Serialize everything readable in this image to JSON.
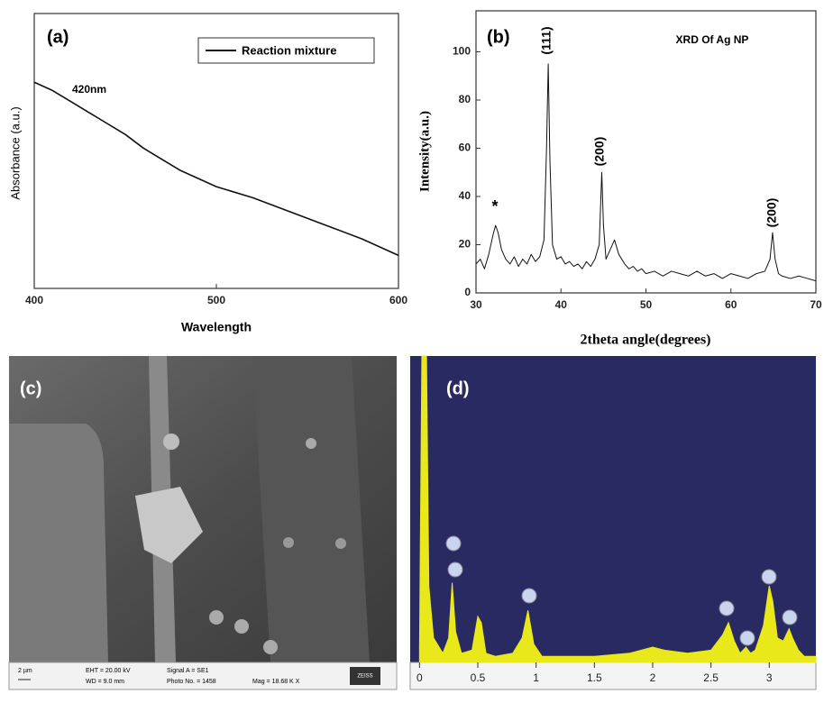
{
  "chart_data": [
    {
      "type": "line",
      "panel_label": "(a)",
      "x_label": "Wavelength",
      "y_label": "Absorbance (a.u.)",
      "annotation": "420nm",
      "xlim": [
        400,
        600
      ],
      "xticks": [
        400,
        500,
        600
      ],
      "ylim": [
        0,
        1
      ],
      "x": [
        400,
        410,
        420,
        430,
        440,
        450,
        460,
        470,
        480,
        490,
        500,
        520,
        540,
        560,
        580,
        600
      ],
      "series": [
        {
          "name": "Reaction mixture",
          "color": "#111111",
          "values": [
            0.75,
            0.72,
            0.68,
            0.64,
            0.6,
            0.56,
            0.51,
            0.47,
            0.43,
            0.4,
            0.37,
            0.33,
            0.28,
            0.23,
            0.18,
            0.12
          ]
        }
      ]
    },
    {
      "type": "line",
      "panel_label": "(b)",
      "title": "XRD Of Ag NP",
      "x_label": "2theta angle(degrees)",
      "y_label": "Intensity(a.u.)",
      "annotations": [
        "(111)",
        "(200)",
        "(200)",
        "*"
      ],
      "xlim": [
        30,
        70
      ],
      "xticks": [
        30,
        40,
        50,
        60,
        70
      ],
      "ylim": [
        0,
        117
      ],
      "yticks": [
        0,
        20,
        40,
        60,
        80,
        100
      ],
      "color": "#111111",
      "x": [
        30,
        30.5,
        31,
        31.5,
        32,
        32.3,
        32.6,
        33,
        33.5,
        34,
        34.5,
        35,
        35.5,
        36,
        36.5,
        37,
        37.5,
        38,
        38.3,
        38.5,
        38.7,
        39,
        39.5,
        40,
        40.5,
        41,
        41.5,
        42,
        42.5,
        43,
        43.5,
        44,
        44.5,
        44.8,
        45,
        45.3,
        45.8,
        46.3,
        46.8,
        47.5,
        48,
        48.5,
        49,
        49.5,
        50,
        51,
        52,
        53,
        54,
        55,
        56,
        57,
        58,
        59,
        60,
        61,
        62,
        63,
        64,
        64.6,
        64.9,
        65.2,
        65.6,
        66,
        67,
        68,
        69,
        70
      ],
      "values": [
        12,
        14,
        10,
        16,
        24,
        28,
        25,
        18,
        14,
        12,
        15,
        11,
        14,
        12,
        16,
        13,
        15,
        22,
        60,
        95,
        55,
        20,
        14,
        15,
        12,
        13,
        11,
        12,
        10,
        13,
        11,
        14,
        20,
        50,
        28,
        14,
        18,
        22,
        16,
        12,
        10,
        11,
        9,
        10,
        8,
        9,
        7,
        9,
        8,
        7,
        9,
        7,
        8,
        6,
        8,
        7,
        6,
        8,
        9,
        14,
        25,
        14,
        8,
        7,
        6,
        7,
        6,
        5
      ]
    },
    {
      "type": "image",
      "panel_label": "(c)",
      "scale_bar": "2 µm",
      "info": [
        "EHT = 20.00 kV",
        "WD = 9.0 mm",
        "Signal A = SE1",
        "Photo No. = 1458",
        "Mag = 18.68 K X"
      ],
      "brand": "ZEISS"
    },
    {
      "type": "area",
      "panel_label": "(d)",
      "color": "#e8e81a",
      "background": "#2a2a63",
      "xlim": [
        -0.08,
        3.4
      ],
      "xticks": [
        0,
        0.5,
        1,
        1.5,
        2,
        2.5,
        3
      ],
      "ylim": [
        0,
        1
      ],
      "x": [
        0,
        0.02,
        0.06,
        0.08,
        0.12,
        0.2,
        0.25,
        0.28,
        0.31,
        0.36,
        0.45,
        0.5,
        0.53,
        0.57,
        0.65,
        0.8,
        0.88,
        0.93,
        0.98,
        1.05,
        1.2,
        1.5,
        1.8,
        2.0,
        2.1,
        2.3,
        2.5,
        2.6,
        2.65,
        2.7,
        2.75,
        2.8,
        2.84,
        2.88,
        2.95,
        3.0,
        3.03,
        3.07,
        3.12,
        3.17,
        3.2,
        3.25,
        3.3,
        3.4
      ],
      "values": [
        0.05,
        1.0,
        1.0,
        0.25,
        0.08,
        0.03,
        0.08,
        0.26,
        0.1,
        0.03,
        0.04,
        0.15,
        0.13,
        0.03,
        0.02,
        0.03,
        0.08,
        0.17,
        0.06,
        0.02,
        0.02,
        0.02,
        0.03,
        0.05,
        0.04,
        0.03,
        0.04,
        0.09,
        0.13,
        0.07,
        0.03,
        0.05,
        0.03,
        0.04,
        0.12,
        0.25,
        0.2,
        0.08,
        0.07,
        0.11,
        0.08,
        0.04,
        0.02,
        0.02
      ]
    }
  ]
}
